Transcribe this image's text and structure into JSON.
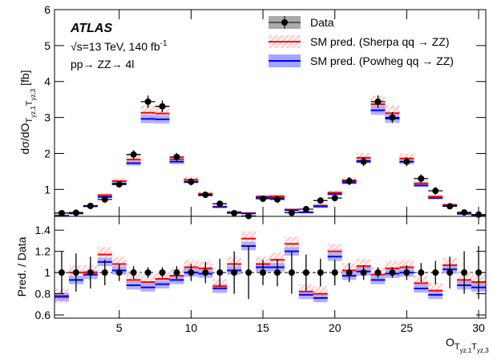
{
  "chart_data": {
    "type": "errorbar",
    "annotations": {
      "experiment": "ATLAS",
      "energy": "√s=13 TeV, 140 fb",
      "energy_sup": "-1",
      "process": "pp→ ZZ→ 4l"
    },
    "ylabel": [
      "dσ/dO",
      "T",
      "yz,1",
      "T",
      "yz,3",
      " [fb]"
    ],
    "xlabel": [
      "O",
      "T",
      "yz,1",
      "T",
      "yz,3"
    ],
    "x": [
      1,
      2,
      3,
      4,
      5,
      6,
      7,
      8,
      9,
      10,
      11,
      12,
      13,
      14,
      15,
      16,
      17,
      18,
      19,
      20,
      21,
      22,
      23,
      24,
      25,
      26,
      27,
      28,
      29,
      30
    ],
    "xlim": [
      0.5,
      30.5
    ],
    "xticks": [
      5,
      10,
      15,
      20,
      25,
      30
    ],
    "ylim": [
      0.25,
      6
    ],
    "yticks": [
      1,
      2,
      3,
      4,
      5,
      6
    ],
    "series": [
      {
        "name": "Data",
        "color": "#000000",
        "values": [
          0.34,
          0.35,
          0.54,
          0.72,
          1.14,
          1.97,
          3.44,
          3.31,
          1.9,
          1.21,
          0.85,
          0.6,
          0.34,
          0.26,
          0.74,
          0.72,
          0.35,
          0.45,
          0.69,
          0.76,
          1.23,
          1.77,
          3.44,
          3.0,
          1.77,
          1.3,
          0.96,
          0.53,
          0.36,
          0.3
        ]
      },
      {
        "name": "SM pred. (Sherpa qq → ZZ)",
        "color": "#ff0000",
        "band_color": "#ffb3b3",
        "band": 0.07,
        "values": [
          0.27,
          0.35,
          0.54,
          0.84,
          1.23,
          1.83,
          3.13,
          3.11,
          1.84,
          1.27,
          0.88,
          0.52,
          0.37,
          0.34,
          0.8,
          0.81,
          0.44,
          0.37,
          0.55,
          0.91,
          1.25,
          1.88,
          3.37,
          3.12,
          1.86,
          1.17,
          0.8,
          0.57,
          0.33,
          0.27
        ]
      },
      {
        "name": "SM pred. (Powheg qq → ZZ)",
        "color": "#0000ff",
        "band_color": "#a3a6ff",
        "band": 0.04,
        "values": [
          0.26,
          0.33,
          0.53,
          0.79,
          1.16,
          1.73,
          2.96,
          2.95,
          1.77,
          1.21,
          0.84,
          0.51,
          0.35,
          0.33,
          0.78,
          0.76,
          0.42,
          0.36,
          0.52,
          0.87,
          1.19,
          1.79,
          3.2,
          2.97,
          1.77,
          1.11,
          0.76,
          0.55,
          0.32,
          0.26
        ]
      }
    ],
    "ratio": {
      "ylabel": "Pred. / Data",
      "ylim": [
        0.57,
        1.53
      ],
      "yticks": [
        0.6,
        0.8,
        1,
        1.2,
        1.4
      ],
      "reference": 1,
      "data_errors": [
        0.2,
        0.18,
        0.15,
        0.12,
        0.08,
        0.06,
        0.05,
        0.05,
        0.06,
        0.08,
        0.1,
        0.13,
        0.2,
        0.25,
        0.12,
        0.13,
        0.2,
        0.17,
        0.13,
        0.12,
        0.09,
        0.07,
        0.05,
        0.05,
        0.07,
        0.09,
        0.11,
        0.15,
        0.2,
        0.25
      ],
      "series": [
        {
          "values": [
            0.78,
            1.0,
            1.0,
            1.17,
            1.08,
            0.93,
            0.91,
            0.94,
            0.97,
            1.05,
            1.04,
            0.87,
            1.08,
            1.32,
            1.08,
            1.12,
            1.27,
            0.82,
            0.8,
            1.2,
            1.02,
            1.06,
            0.98,
            1.04,
            1.05,
            0.9,
            0.83,
            1.07,
            0.93,
            0.91
          ]
        },
        {
          "values": [
            0.77,
            0.93,
            0.98,
            1.1,
            1.02,
            0.88,
            0.86,
            0.89,
            0.93,
            1.0,
            0.99,
            0.85,
            1.02,
            1.25,
            1.05,
            1.05,
            1.2,
            0.79,
            0.76,
            1.15,
            0.97,
            1.01,
            0.93,
            0.99,
            1.0,
            0.85,
            0.79,
            1.03,
            0.88,
            0.86
          ]
        }
      ]
    }
  }
}
